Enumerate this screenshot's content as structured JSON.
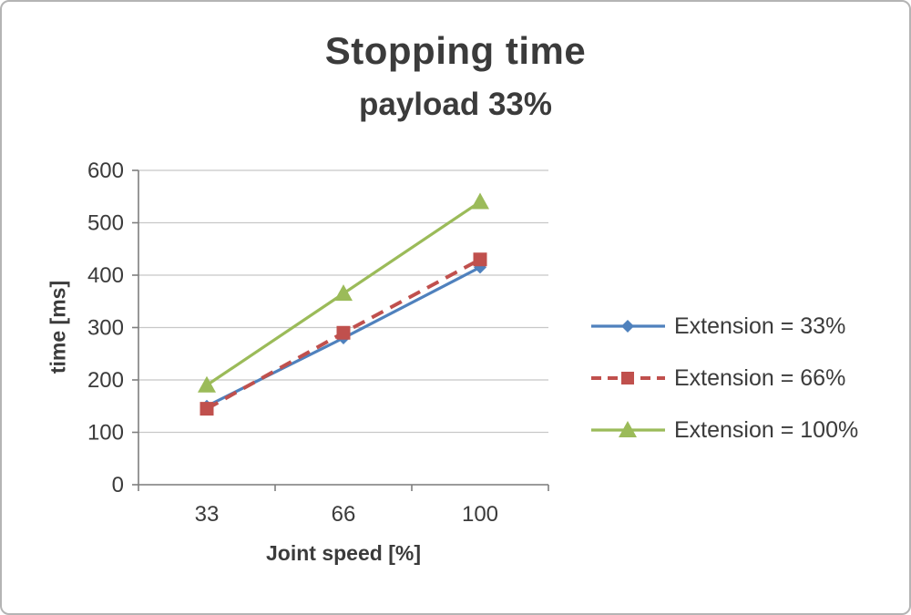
{
  "chart_data": {
    "type": "line",
    "title": "Stopping time",
    "subtitle": "payload 33%",
    "xlabel": "Joint speed [%]",
    "ylabel": "time [ms]",
    "categories": [
      "33",
      "66",
      "100"
    ],
    "ylim": [
      0,
      600
    ],
    "ytick_step": 100,
    "grid": true,
    "legend_position": "right",
    "series": [
      {
        "name": "Extension = 33%",
        "values": [
          150,
          280,
          415
        ],
        "color": "#4f81bd",
        "marker": "diamond",
        "dash": "solid"
      },
      {
        "name": "Extension = 66%",
        "values": [
          145,
          290,
          430
        ],
        "color": "#c0504d",
        "marker": "square",
        "dash": "dashed"
      },
      {
        "name": "Extension = 100%",
        "values": [
          190,
          365,
          540
        ],
        "color": "#9bbb59",
        "marker": "triangle",
        "dash": "solid"
      }
    ],
    "colors": {
      "gridline": "#c8c8c8",
      "axis": "#7f7f7f",
      "tick_label": "#3b3b3b"
    }
  }
}
